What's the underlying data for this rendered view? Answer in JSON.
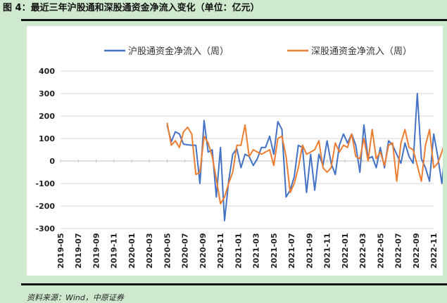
{
  "header": {
    "title": "图 4：最近三年沪股通和深股通资金净流入变化（单位：亿元）"
  },
  "footer": {
    "source": "资料来源：Wind，中原证券"
  },
  "chart_data": {
    "type": "line",
    "title": "",
    "xlabel": "",
    "ylabel": "",
    "ylim": [
      -300,
      400
    ],
    "yticks": [
      400,
      300,
      200,
      100,
      0,
      -100,
      -200,
      -300
    ],
    "x_tick_labels": [
      "2019-05",
      "2019-07",
      "2019-09",
      "2019-11",
      "2020-01",
      "2020-03",
      "2020-05",
      "2020-07",
      "2020-09",
      "2020-11",
      "2021-01",
      "2021-03",
      "2021-05",
      "2021-07",
      "2021-09",
      "2021-11",
      "2022-01",
      "2022-03",
      "2022-05",
      "2022-07",
      "2022-09",
      "2022-11"
    ],
    "x_range_months": [
      0,
      21
    ],
    "grid": true,
    "legend_position": "top",
    "series": [
      {
        "name": "沪股通资金净流入（周）",
        "color": "#4472c4",
        "start_month": 6.0,
        "step_months": 0.2308,
        "values": [
          160,
          85,
          130,
          120,
          75,
          72,
          70,
          70,
          -100,
          180,
          40,
          50,
          -160,
          60,
          -265,
          -90,
          30,
          55,
          -30,
          30,
          20,
          -20,
          10,
          60,
          60,
          110,
          30,
          175,
          140,
          -160,
          -130,
          -70,
          70,
          60,
          -140,
          30,
          -130,
          30,
          -20,
          90,
          -10,
          -60,
          70,
          120,
          80,
          120,
          70,
          -50,
          160,
          10,
          20,
          -30,
          60,
          -30,
          90,
          70,
          30,
          -10,
          80,
          20,
          -10,
          300,
          10,
          -30,
          -90,
          120,
          20,
          -100,
          90,
          -60,
          50,
          170,
          10,
          -60,
          30,
          -80,
          50,
          -10,
          -40,
          120,
          10,
          -20,
          300,
          10,
          -10,
          -50,
          50,
          -20,
          200,
          -160,
          180,
          -40,
          -20,
          40,
          -100,
          60,
          -40,
          -130,
          130,
          40,
          -80,
          20,
          -50,
          30,
          -90,
          110,
          30,
          270,
          80,
          30,
          60,
          -140,
          0,
          30,
          0,
          60,
          50,
          0,
          -40,
          60,
          30,
          -20,
          -100,
          -180,
          -60,
          80,
          130
        ]
      },
      {
        "name": "深股通资金净流入（周）",
        "color": "#ed7d31",
        "start_month": 6.0,
        "step_months": 0.2308,
        "values": [
          170,
          70,
          90,
          60,
          130,
          150,
          120,
          -60,
          -50,
          110,
          80,
          20,
          -80,
          -190,
          -160,
          -100,
          -50,
          70,
          70,
          160,
          20,
          50,
          40,
          30,
          40,
          50,
          -20,
          100,
          110,
          20,
          -140,
          -100,
          -30,
          70,
          30,
          40,
          50,
          90,
          -30,
          -50,
          -30,
          80,
          40,
          70,
          60,
          120,
          20,
          10,
          100,
          0,
          140,
          10,
          40,
          -20,
          70,
          80,
          -90,
          80,
          140,
          60,
          50,
          -20,
          -90,
          70,
          140,
          -30,
          -10,
          40,
          100,
          -30,
          60,
          40,
          -30,
          90,
          20,
          40,
          -30,
          110,
          -20,
          140,
          80,
          -10,
          -50,
          90,
          -30,
          20,
          -60,
          80,
          -80,
          170,
          80,
          -70,
          -90,
          -40,
          60,
          -60,
          -190,
          -70,
          80,
          30,
          -60,
          -20,
          50,
          0,
          -40,
          60,
          -10,
          10,
          70,
          30,
          -60,
          30,
          -40,
          40,
          20,
          -30,
          10,
          -40,
          -60,
          30,
          20,
          -90,
          -40,
          0,
          130
        ]
      }
    ]
  }
}
